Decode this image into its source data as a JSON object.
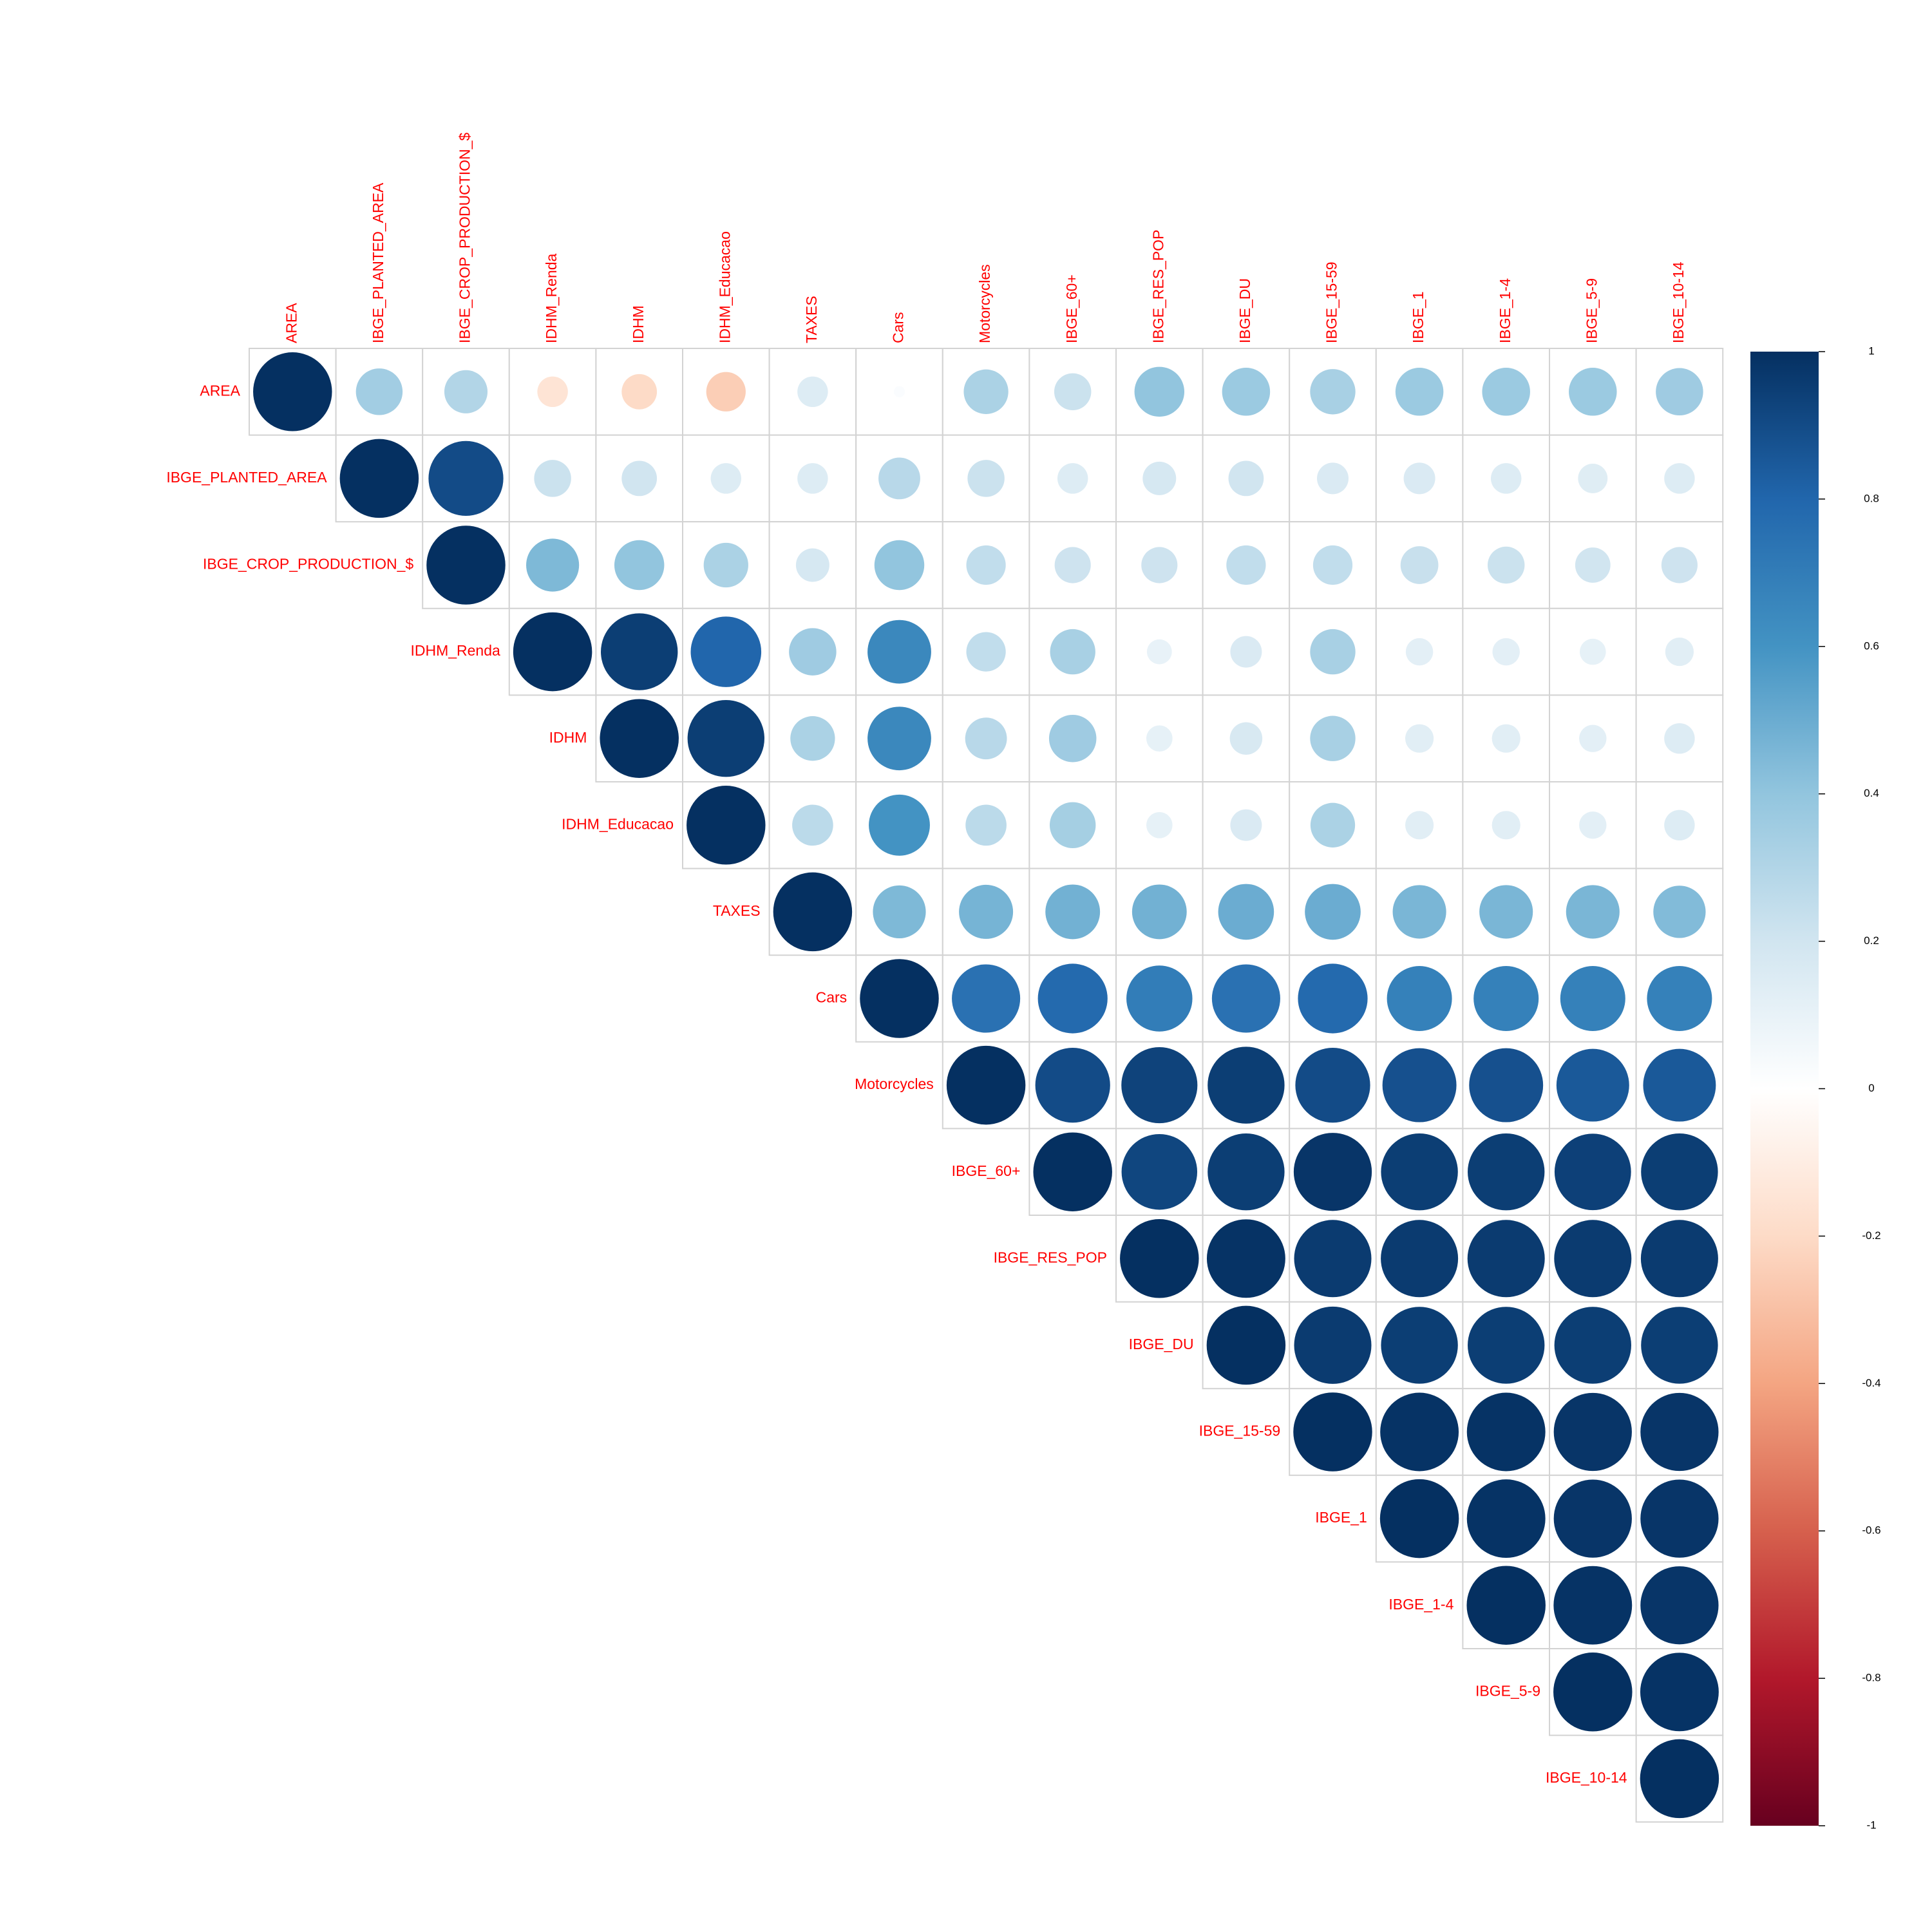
{
  "chart_data": {
    "type": "heatmap",
    "subtype": "correlation-plot-upper-triangle-circles",
    "variables": [
      "AREA",
      "IBGE_PLANTED_AREA",
      "IBGE_CROP_PRODUCTION_$",
      "IDHM_Renda",
      "IDHM",
      "IDHM_Educacao",
      "TAXES",
      "Cars",
      "Motorcycles",
      "IBGE_60+",
      "IBGE_RES_POP",
      "IBGE_DU",
      "IBGE_15-59",
      "IBGE_1",
      "IBGE_1-4",
      "IBGE_5-9",
      "IBGE_10-14"
    ],
    "matrix": [
      [
        1,
        0.35,
        0.3,
        -0.15,
        -0.2,
        -0.25,
        0.15,
        0.02,
        0.32,
        0.22,
        0.4,
        0.37,
        0.33,
        0.37,
        0.37,
        0.37,
        0.36
      ],
      [
        null,
        1,
        0.9,
        0.22,
        0.2,
        0.15,
        0.15,
        0.28,
        0.22,
        0.15,
        0.18,
        0.2,
        0.16,
        0.16,
        0.15,
        0.14,
        0.15
      ],
      [
        null,
        null,
        1,
        0.45,
        0.4,
        0.32,
        0.18,
        0.4,
        0.25,
        0.21,
        0.21,
        0.25,
        0.25,
        0.23,
        0.22,
        0.2,
        0.21
      ],
      [
        null,
        null,
        null,
        1,
        0.95,
        0.8,
        0.36,
        0.65,
        0.25,
        0.33,
        0.1,
        0.16,
        0.33,
        0.12,
        0.12,
        0.11,
        0.13
      ],
      [
        null,
        null,
        null,
        null,
        1,
        0.95,
        0.32,
        0.65,
        0.28,
        0.36,
        0.11,
        0.17,
        0.33,
        0.13,
        0.13,
        0.12,
        0.15
      ],
      [
        null,
        null,
        null,
        null,
        null,
        1,
        0.27,
        0.6,
        0.27,
        0.34,
        0.11,
        0.16,
        0.32,
        0.13,
        0.13,
        0.12,
        0.15
      ],
      [
        null,
        null,
        null,
        null,
        null,
        null,
        1,
        0.45,
        0.47,
        0.48,
        0.48,
        0.5,
        0.5,
        0.46,
        0.46,
        0.46,
        0.44
      ],
      [
        null,
        null,
        null,
        null,
        null,
        null,
        null,
        1,
        0.75,
        0.78,
        0.7,
        0.75,
        0.78,
        0.68,
        0.68,
        0.68,
        0.68
      ],
      [
        null,
        null,
        null,
        null,
        null,
        null,
        null,
        null,
        1,
        0.9,
        0.93,
        0.95,
        0.9,
        0.88,
        0.88,
        0.85,
        0.85
      ],
      [
        null,
        null,
        null,
        null,
        null,
        null,
        null,
        null,
        null,
        1,
        0.92,
        0.95,
        0.98,
        0.95,
        0.95,
        0.94,
        0.95
      ],
      [
        null,
        null,
        null,
        null,
        null,
        null,
        null,
        null,
        null,
        null,
        1,
        0.99,
        0.96,
        0.96,
        0.96,
        0.96,
        0.96
      ],
      [
        null,
        null,
        null,
        null,
        null,
        null,
        null,
        null,
        null,
        null,
        null,
        1,
        0.96,
        0.95,
        0.95,
        0.95,
        0.95
      ],
      [
        null,
        null,
        null,
        null,
        null,
        null,
        null,
        null,
        null,
        null,
        null,
        null,
        1,
        0.99,
        0.99,
        0.98,
        0.98
      ],
      [
        null,
        null,
        null,
        null,
        null,
        null,
        null,
        null,
        null,
        null,
        null,
        null,
        null,
        1,
        0.99,
        0.98,
        0.98
      ],
      [
        null,
        null,
        null,
        null,
        null,
        null,
        null,
        null,
        null,
        null,
        null,
        null,
        null,
        null,
        1,
        0.99,
        0.98
      ],
      [
        null,
        null,
        null,
        null,
        null,
        null,
        null,
        null,
        null,
        null,
        null,
        null,
        null,
        null,
        null,
        1,
        0.99
      ],
      [
        null,
        null,
        null,
        null,
        null,
        null,
        null,
        null,
        null,
        null,
        null,
        null,
        null,
        null,
        null,
        null,
        1
      ]
    ],
    "legend": {
      "ticks": [
        "1",
        "0.8",
        "0.6",
        "0.4",
        "0.2",
        "0",
        "-0.2",
        "-0.4",
        "-0.6",
        "-0.8",
        "-1"
      ],
      "range": [
        -1,
        1
      ],
      "colors_high_to_low": [
        "#053061",
        "#2166AC",
        "#4393C3",
        "#92C5DE",
        "#D1E5F0",
        "#FFFFFF",
        "#FDDBC7",
        "#F4A582",
        "#D6604D",
        "#B2182B",
        "#67001F"
      ],
      "placement": "right"
    },
    "label_color": "#FF0000",
    "grid_color": "#D3D3D3"
  }
}
